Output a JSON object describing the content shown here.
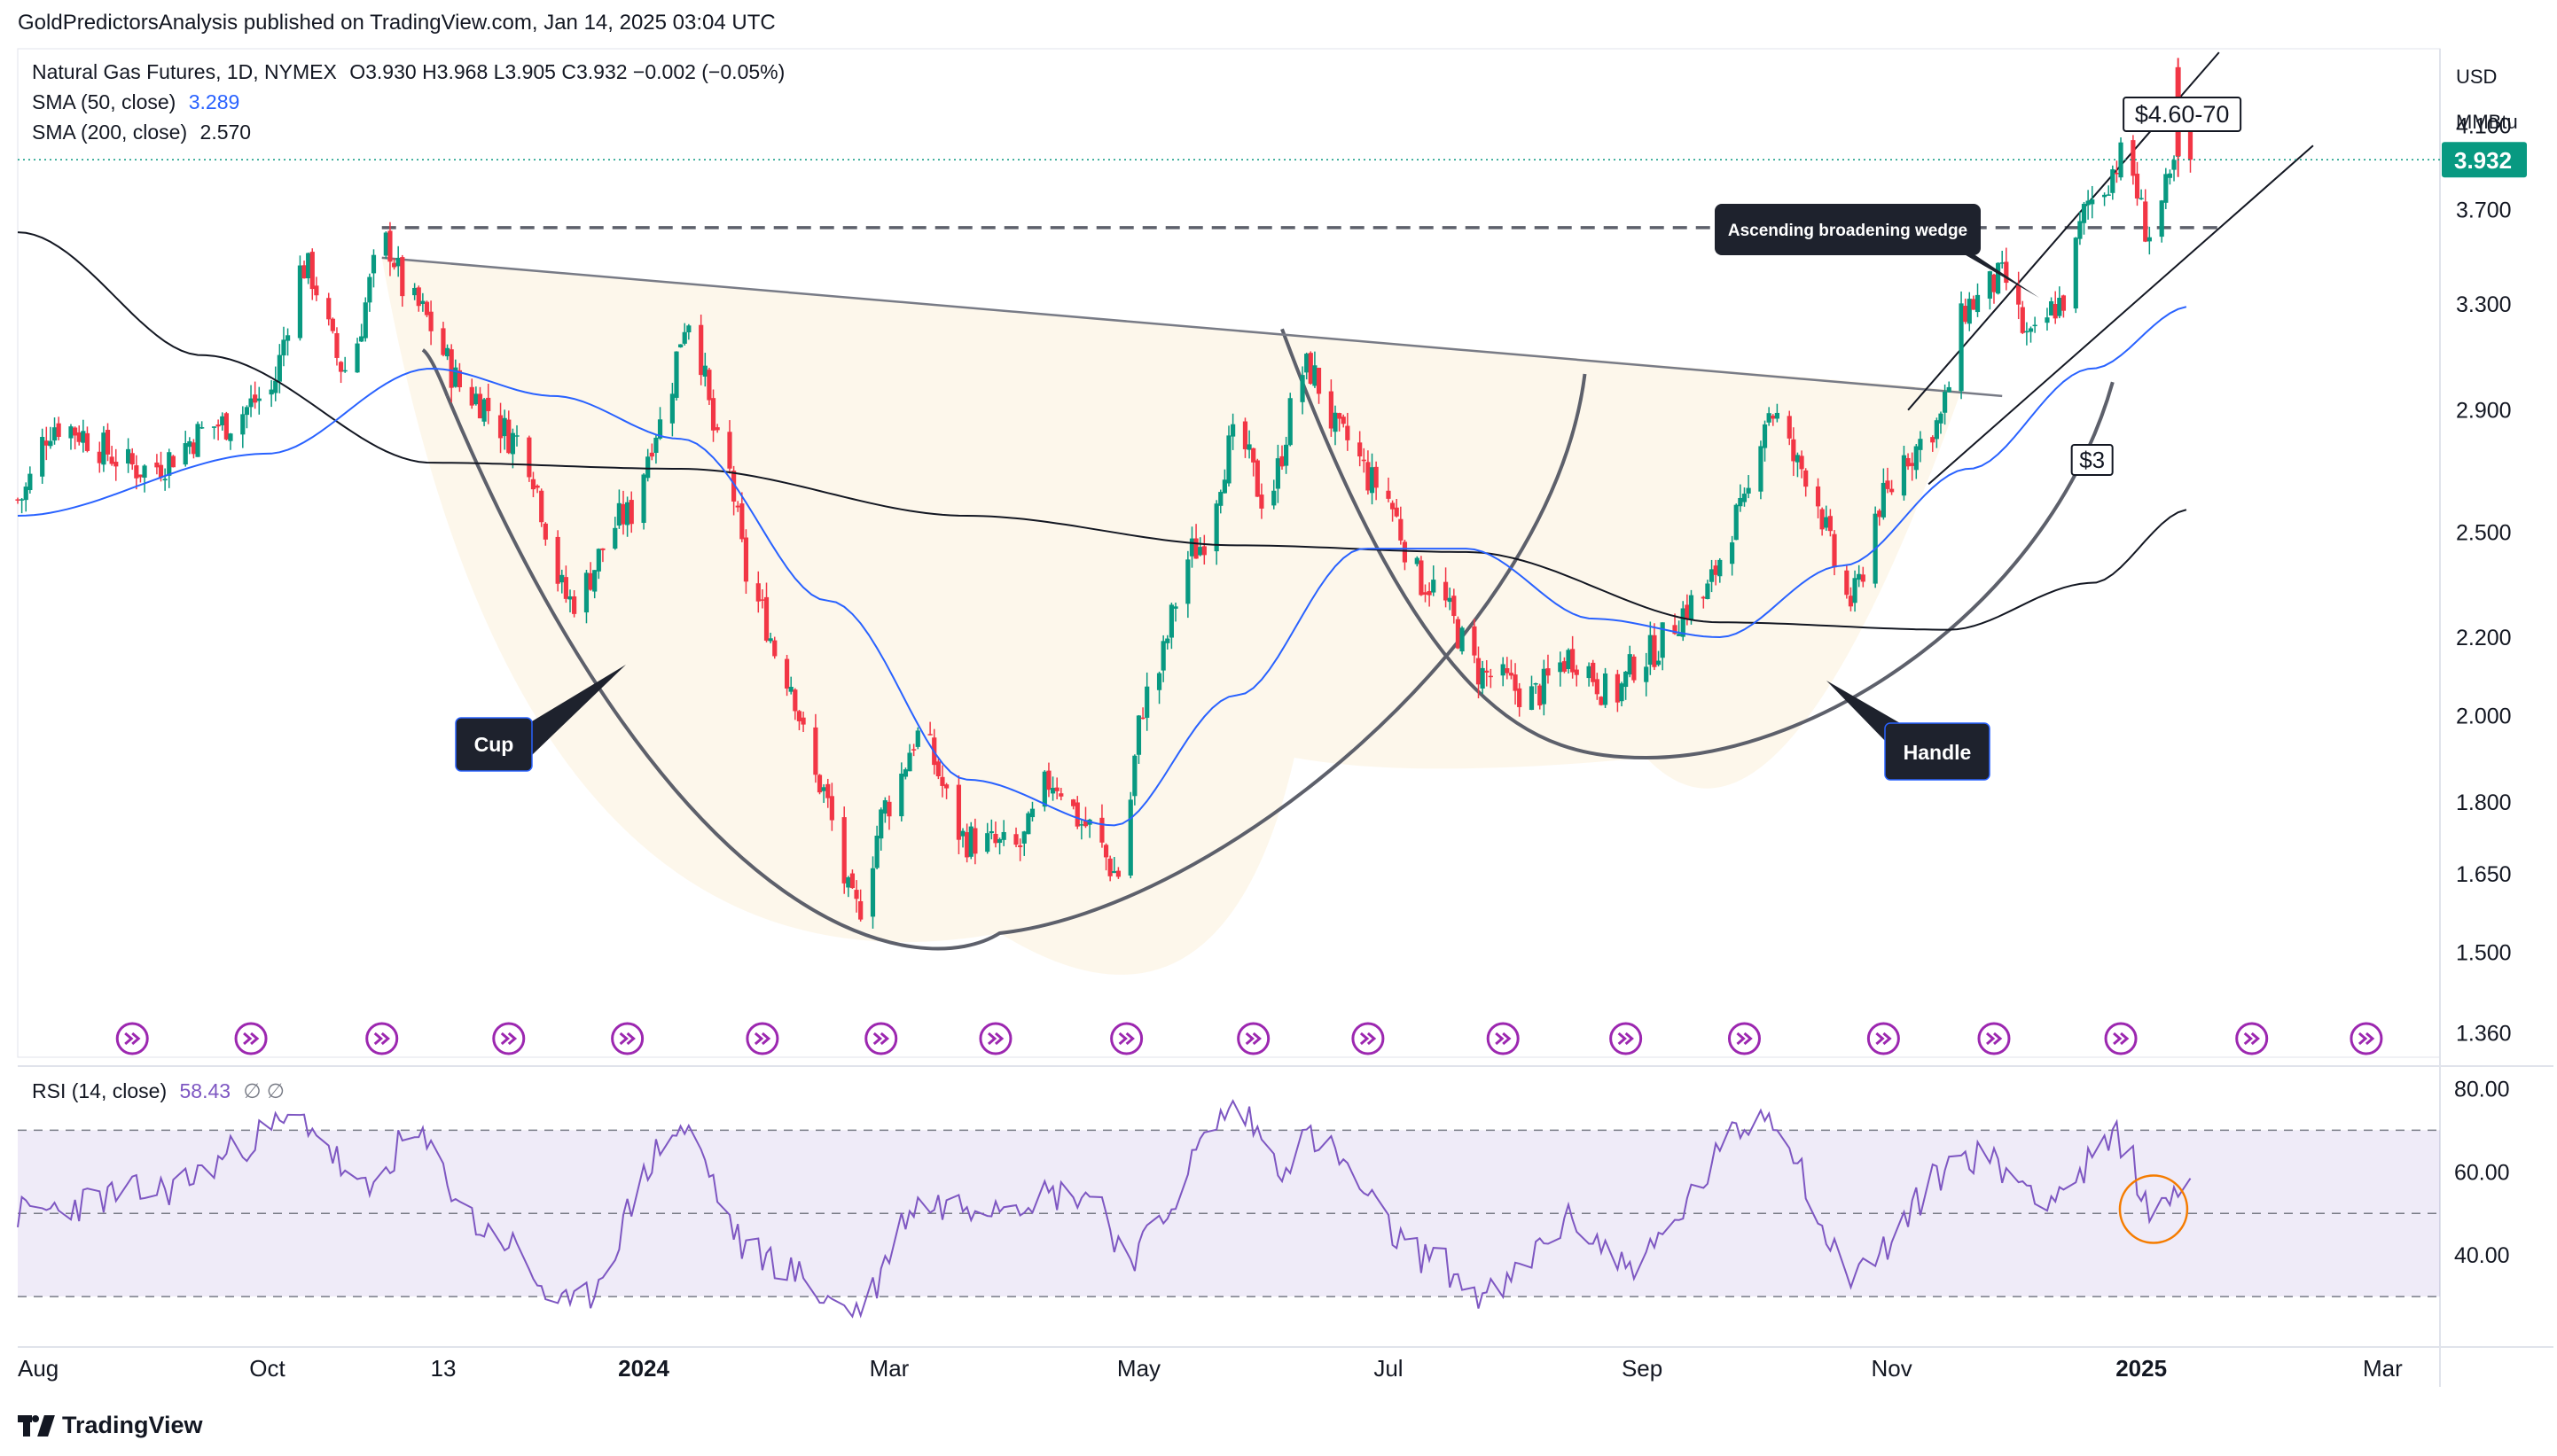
{
  "header": {
    "publisher": "GoldPredictorsAnalysis published on TradingView.com, Jan 14, 2025 03:04 UTC"
  },
  "legend": {
    "symbol": "Natural Gas Futures, 1D, NYMEX",
    "ohlc": "O3.930 H3.968 L3.905 C3.932 −0.002 (−0.05%)",
    "sma50_label": "SMA (50, close)",
    "sma50_value": "3.289",
    "sma200_label": "SMA (200, close)",
    "sma200_value": "2.570",
    "rsi_label": "RSI (14, close)",
    "rsi_value": "58.43",
    "rsi_extra": "∅ ∅"
  },
  "axis": {
    "currency": "USD",
    "unit": "MMBtu",
    "last_price": "3.932",
    "price_ticks": [
      "4.100",
      "3.700",
      "3.300",
      "2.900",
      "2.500",
      "2.200",
      "2.000",
      "1.800",
      "1.650",
      "1.500",
      "1.360"
    ],
    "rsi_ticks": [
      "80.00",
      "60.00",
      "40.00"
    ],
    "time_ticks": [
      "Aug",
      "Oct",
      "13",
      "2024",
      "Mar",
      "May",
      "Jul",
      "Sep",
      "Nov",
      "2025",
      "Mar"
    ]
  },
  "annotations": {
    "target": "$4.60-70",
    "wedge": "Ascending broadening wedge",
    "support": "$3",
    "cup": "Cup",
    "handle": "Handle"
  },
  "brand": {
    "name": "TradingView"
  },
  "colors": {
    "up": "#089981",
    "down": "#f23645",
    "sma50": "#2962ff",
    "sma200": "#131722",
    "rsi": "#7e57c2",
    "last_price": "#089981",
    "circle": "#f57c00"
  },
  "chart_data": {
    "type": "candlestick",
    "title": "",
    "x_range": [
      "2023-08-01",
      "2025-03-15"
    ],
    "y_scale": "log",
    "y_range": [
      1.32,
      4.5
    ],
    "anchor_prices": [
      {
        "date": "2023-08-01",
        "close": 2.6
      },
      {
        "date": "2023-08-10",
        "close": 2.85
      },
      {
        "date": "2023-09-01",
        "close": 2.7
      },
      {
        "date": "2023-09-20",
        "close": 2.85
      },
      {
        "date": "2023-10-01",
        "close": 2.95
      },
      {
        "date": "2023-10-10",
        "close": 3.45
      },
      {
        "date": "2023-10-20",
        "close": 3.05
      },
      {
        "date": "2023-10-30",
        "close": 3.55
      },
      {
        "date": "2023-11-05",
        "close": 3.3
      },
      {
        "date": "2023-11-20",
        "close": 2.95
      },
      {
        "date": "2023-12-01",
        "close": 2.8
      },
      {
        "date": "2023-12-14",
        "close": 2.3
      },
      {
        "date": "2023-12-28",
        "close": 2.55
      },
      {
        "date": "2024-01-05",
        "close": 2.85
      },
      {
        "date": "2024-01-12",
        "close": 3.25
      },
      {
        "date": "2024-01-20",
        "close": 2.75
      },
      {
        "date": "2024-01-28",
        "close": 2.3
      },
      {
        "date": "2024-02-05",
        "close": 2.1
      },
      {
        "date": "2024-02-12",
        "close": 1.85
      },
      {
        "date": "2024-02-22",
        "close": 1.58
      },
      {
        "date": "2024-03-01",
        "close": 1.8
      },
      {
        "date": "2024-03-08",
        "close": 1.95
      },
      {
        "date": "2024-03-20",
        "close": 1.72
      },
      {
        "date": "2024-04-01",
        "close": 1.7
      },
      {
        "date": "2024-04-10",
        "close": 1.85
      },
      {
        "date": "2024-04-18",
        "close": 1.75
      },
      {
        "date": "2024-04-26",
        "close": 1.65
      },
      {
        "date": "2024-05-03",
        "close": 2.05
      },
      {
        "date": "2024-05-15",
        "close": 2.45
      },
      {
        "date": "2024-05-25",
        "close": 2.8
      },
      {
        "date": "2024-06-01",
        "close": 2.6
      },
      {
        "date": "2024-06-11",
        "close": 3.05
      },
      {
        "date": "2024-06-20",
        "close": 2.8
      },
      {
        "date": "2024-06-28",
        "close": 2.65
      },
      {
        "date": "2024-07-10",
        "close": 2.35
      },
      {
        "date": "2024-07-25",
        "close": 2.1
      },
      {
        "date": "2024-08-05",
        "close": 2.05
      },
      {
        "date": "2024-08-15",
        "close": 2.15
      },
      {
        "date": "2024-08-25",
        "close": 2.05
      },
      {
        "date": "2024-09-01",
        "close": 2.15
      },
      {
        "date": "2024-09-15",
        "close": 2.3
      },
      {
        "date": "2024-09-25",
        "close": 2.55
      },
      {
        "date": "2024-10-02",
        "close": 2.9
      },
      {
        "date": "2024-10-10",
        "close": 2.7
      },
      {
        "date": "2024-10-22",
        "close": 2.3
      },
      {
        "date": "2024-10-30",
        "close": 2.6
      },
      {
        "date": "2024-11-05",
        "close": 2.75
      },
      {
        "date": "2024-11-12",
        "close": 2.85
      },
      {
        "date": "2024-11-20",
        "close": 3.3
      },
      {
        "date": "2024-11-28",
        "close": 3.4
      },
      {
        "date": "2024-12-05",
        "close": 3.15
      },
      {
        "date": "2024-12-12",
        "close": 3.3
      },
      {
        "date": "2024-12-20",
        "close": 3.75
      },
      {
        "date": "2024-12-28",
        "close": 3.95
      },
      {
        "date": "2025-01-03",
        "close": 3.6
      },
      {
        "date": "2025-01-08",
        "close": 3.8
      },
      {
        "date": "2025-01-10",
        "close": 4.0
      },
      {
        "date": "2025-01-13",
        "close": 3.932
      }
    ],
    "sma50_anchor": [
      {
        "date": "2023-08-01",
        "value": 2.55
      },
      {
        "date": "2023-10-01",
        "value": 2.75
      },
      {
        "date": "2023-11-10",
        "value": 3.05
      },
      {
        "date": "2023-12-10",
        "value": 2.95
      },
      {
        "date": "2024-01-10",
        "value": 2.8
      },
      {
        "date": "2024-02-15",
        "value": 2.3
      },
      {
        "date": "2024-03-20",
        "value": 1.85
      },
      {
        "date": "2024-04-25",
        "value": 1.75
      },
      {
        "date": "2024-05-25",
        "value": 2.05
      },
      {
        "date": "2024-06-25",
        "value": 2.45
      },
      {
        "date": "2024-07-20",
        "value": 2.45
      },
      {
        "date": "2024-08-20",
        "value": 2.25
      },
      {
        "date": "2024-09-20",
        "value": 2.2
      },
      {
        "date": "2024-10-20",
        "value": 2.4
      },
      {
        "date": "2024-11-20",
        "value": 2.7
      },
      {
        "date": "2024-12-20",
        "value": 3.05
      },
      {
        "date": "2025-01-13",
        "value": 3.289
      }
    ],
    "sma200_anchor": [
      {
        "date": "2023-08-01",
        "value": 3.6
      },
      {
        "date": "2023-09-15",
        "value": 3.1
      },
      {
        "date": "2023-11-10",
        "value": 2.72
      },
      {
        "date": "2024-01-10",
        "value": 2.7
      },
      {
        "date": "2024-03-20",
        "value": 2.55
      },
      {
        "date": "2024-05-25",
        "value": 2.46
      },
      {
        "date": "2024-07-20",
        "value": 2.44
      },
      {
        "date": "2024-09-20",
        "value": 2.24
      },
      {
        "date": "2024-11-15",
        "value": 2.22
      },
      {
        "date": "2024-12-20",
        "value": 2.35
      },
      {
        "date": "2025-01-13",
        "value": 2.57
      }
    ],
    "rsi": {
      "range": [
        20,
        85
      ],
      "levels": [
        70,
        50,
        30
      ],
      "anchor": [
        {
          "date": "2023-08-01",
          "value": 50
        },
        {
          "date": "2023-09-01",
          "value": 55
        },
        {
          "date": "2023-10-10",
          "value": 72
        },
        {
          "date": "2023-10-25",
          "value": 55
        },
        {
          "date": "2023-11-05",
          "value": 68
        },
        {
          "date": "2023-11-25",
          "value": 45
        },
        {
          "date": "2023-12-14",
          "value": 27
        },
        {
          "date": "2024-01-10",
          "value": 70
        },
        {
          "date": "2024-01-28",
          "value": 40
        },
        {
          "date": "2024-02-22",
          "value": 27
        },
        {
          "date": "2024-03-08",
          "value": 52
        },
        {
          "date": "2024-04-20",
          "value": 55
        },
        {
          "date": "2024-04-28",
          "value": 40
        },
        {
          "date": "2024-05-25",
          "value": 75
        },
        {
          "date": "2024-06-05",
          "value": 62
        },
        {
          "date": "2024-06-11",
          "value": 68
        },
        {
          "date": "2024-07-10",
          "value": 40
        },
        {
          "date": "2024-07-25",
          "value": 30
        },
        {
          "date": "2024-08-15",
          "value": 48
        },
        {
          "date": "2024-08-28",
          "value": 38
        },
        {
          "date": "2024-10-02",
          "value": 74
        },
        {
          "date": "2024-10-22",
          "value": 36
        },
        {
          "date": "2024-11-20",
          "value": 64
        },
        {
          "date": "2024-12-10",
          "value": 55
        },
        {
          "date": "2024-12-28",
          "value": 68
        },
        {
          "date": "2025-01-03",
          "value": 50
        },
        {
          "date": "2025-01-13",
          "value": 58.43
        }
      ]
    }
  }
}
